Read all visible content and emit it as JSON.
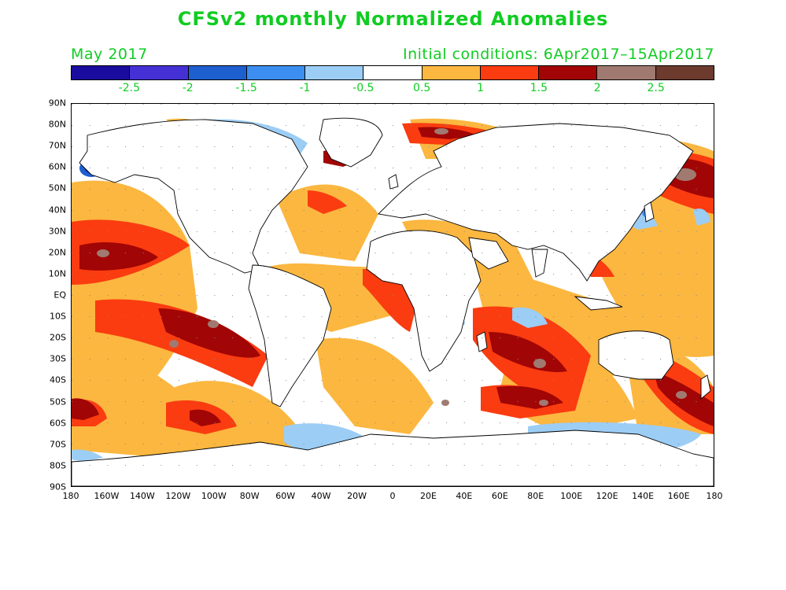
{
  "title": "CFSv2 monthly Normalized Anomalies",
  "valid_period": "May 2017",
  "initial_conditions": "Initial conditions: 6Apr2017–15Apr2017",
  "colorbar": {
    "colors": [
      "#1a0c9e",
      "#4530d6",
      "#1e5fd0",
      "#3c8ff0",
      "#9ccdf5",
      "#ffffff",
      "#fbb740",
      "#fa3c10",
      "#a10505",
      "#a07a70",
      "#6d3a2e"
    ],
    "labels": [
      "-2.5",
      "-2",
      "-1.5",
      "-1",
      "-0.5",
      "0.5",
      "1",
      "1.5",
      "2",
      "2.5"
    ]
  },
  "lat_labels": [
    "90N",
    "80N",
    "70N",
    "60N",
    "50N",
    "40N",
    "30N",
    "20N",
    "10N",
    "EQ",
    "10S",
    "20S",
    "30S",
    "40S",
    "50S",
    "60S",
    "70S",
    "80S",
    "90S"
  ],
  "lon_labels": [
    "180",
    "160W",
    "140W",
    "120W",
    "100W",
    "80W",
    "60W",
    "40W",
    "20W",
    "0",
    "20E",
    "40E",
    "60E",
    "80E",
    "100E",
    "120E",
    "140E",
    "160E",
    "180"
  ]
}
